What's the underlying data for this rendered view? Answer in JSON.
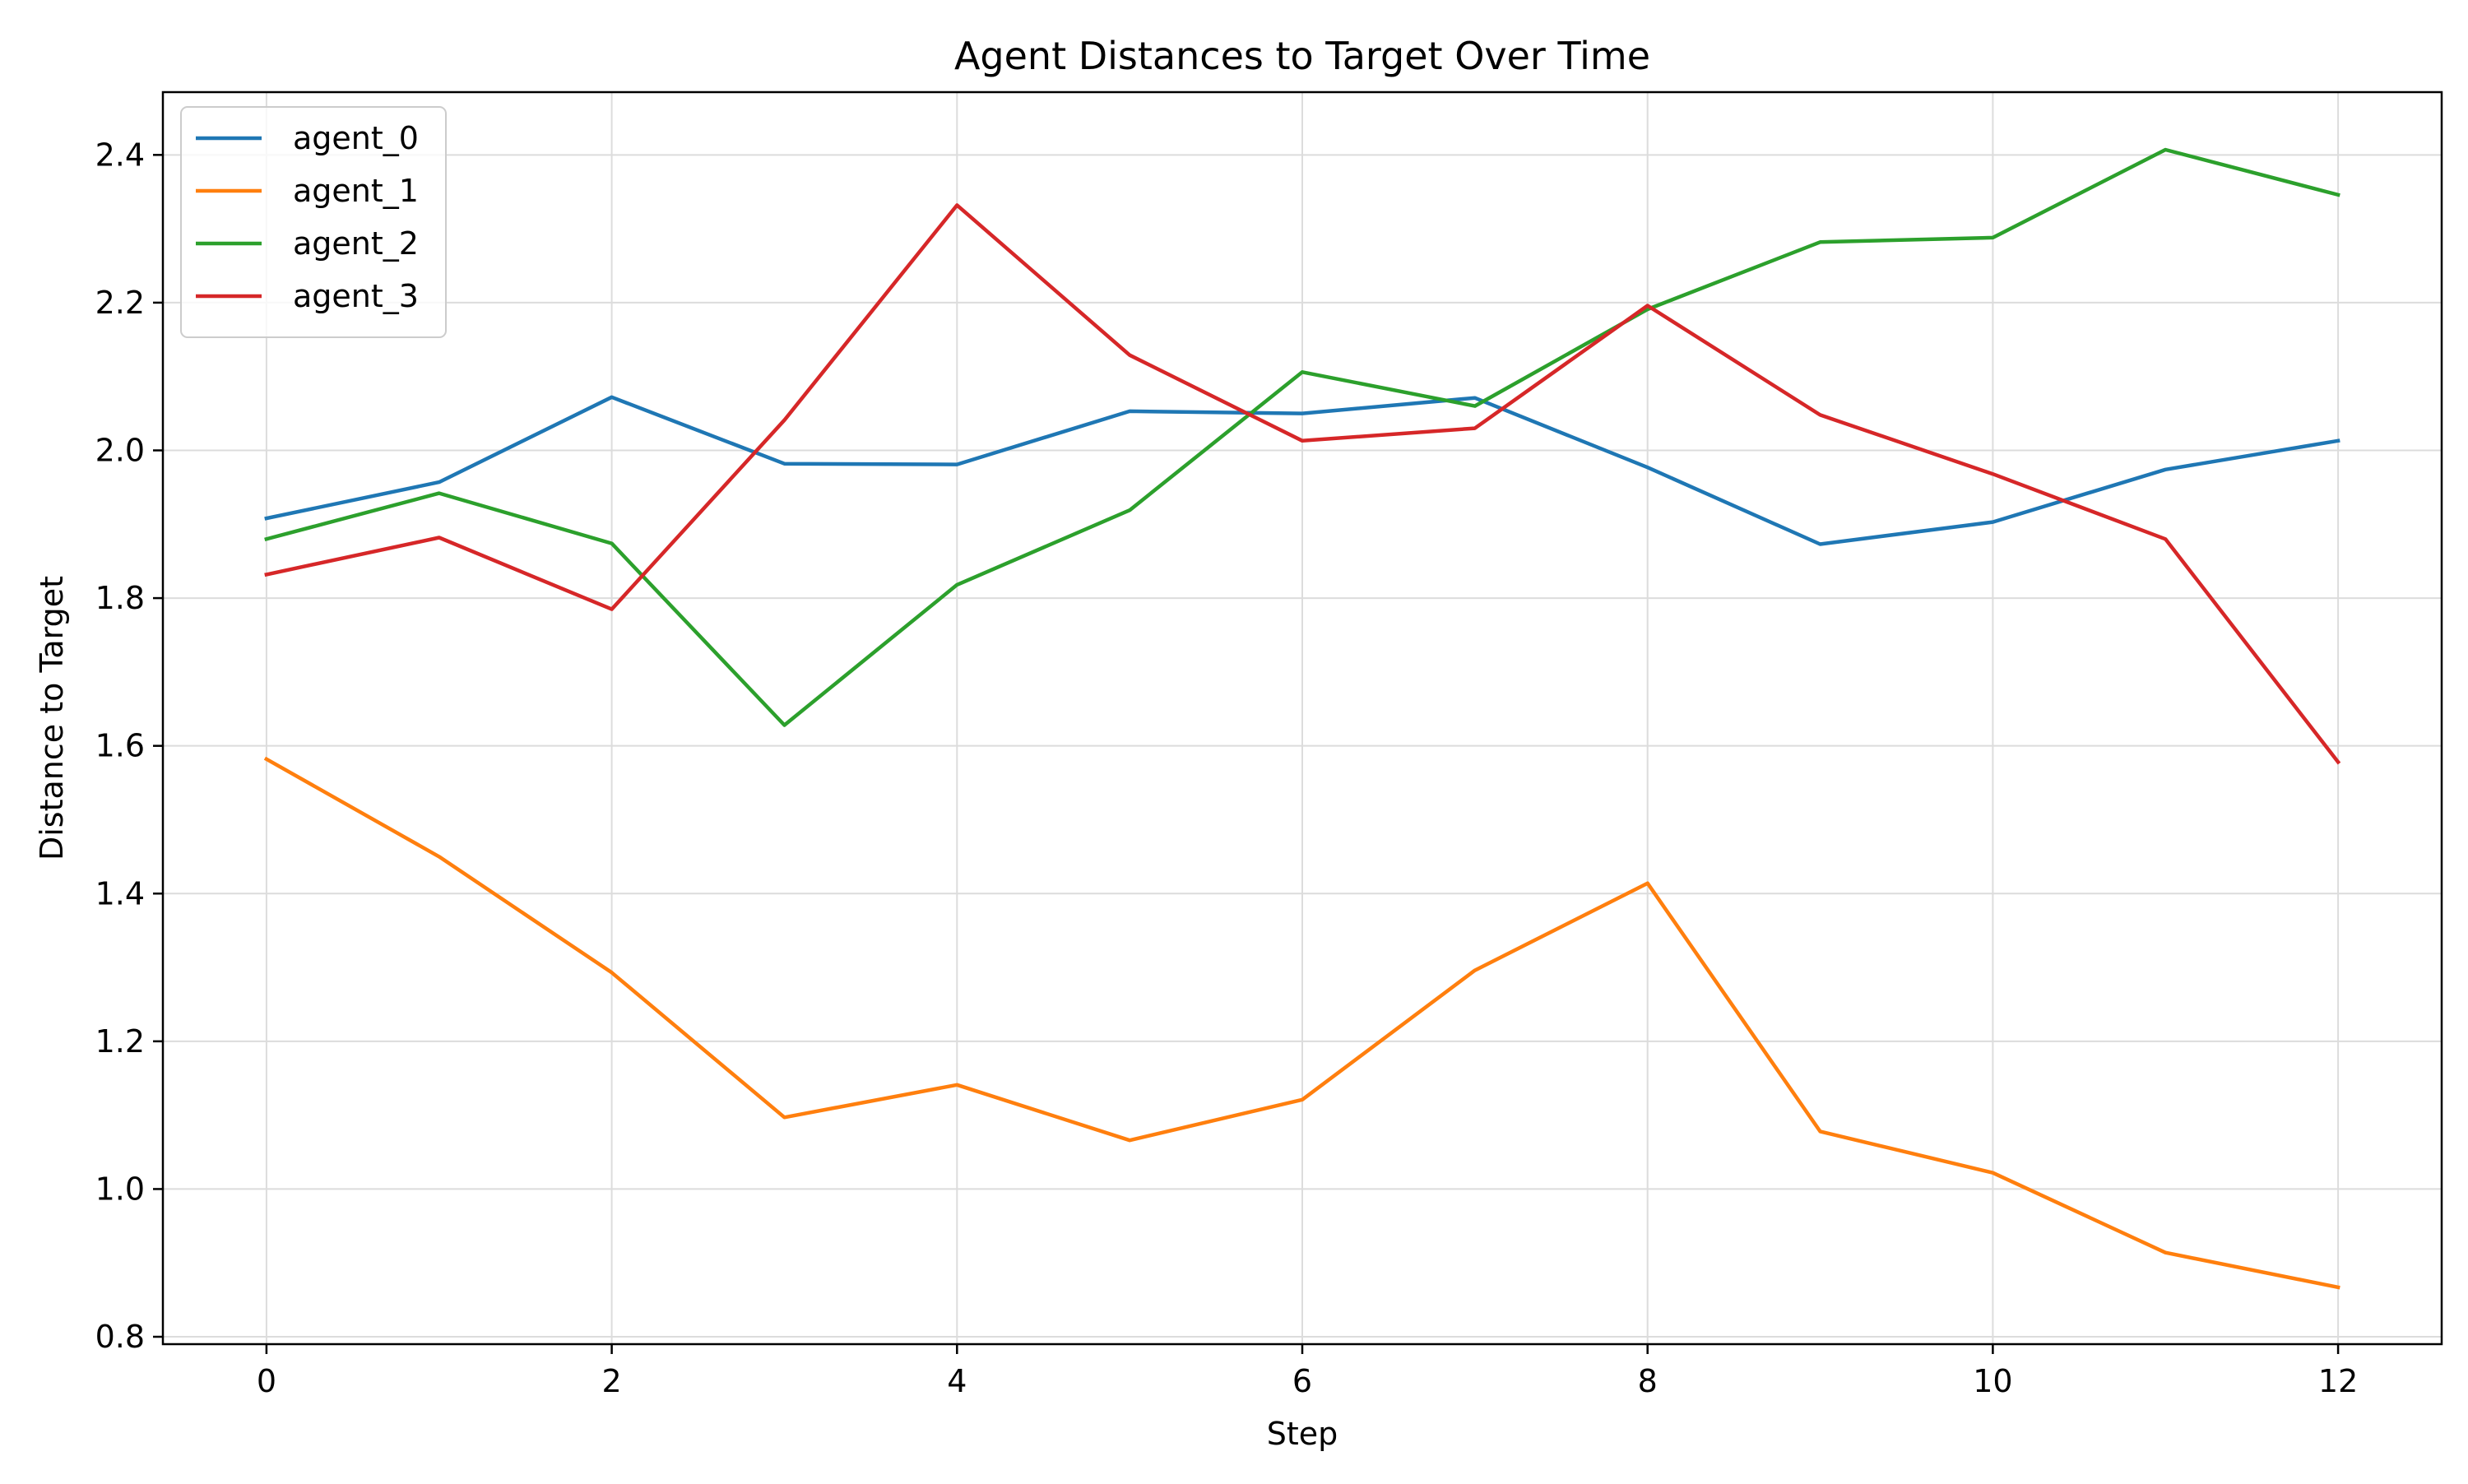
{
  "chart_data": {
    "type": "line",
    "title": "Agent Distances to Target Over Time",
    "xlabel": "Step",
    "ylabel": "Distance to Target",
    "x": [
      0,
      1,
      2,
      3,
      4,
      5,
      6,
      7,
      8,
      9,
      10,
      11,
      12
    ],
    "xlim": [
      -0.6,
      12.6
    ],
    "ylim": [
      0.79,
      2.485
    ],
    "xticks": [
      0,
      2,
      4,
      6,
      8,
      10,
      12
    ],
    "xtick_labels": [
      "0",
      "2",
      "4",
      "6",
      "8",
      "10",
      "12"
    ],
    "yticks": [
      0.8,
      1.0,
      1.2,
      1.4,
      1.6,
      1.8,
      2.0,
      2.2,
      2.4
    ],
    "ytick_labels": [
      "0.8",
      "1.0",
      "1.2",
      "1.4",
      "1.6",
      "1.8",
      "2.0",
      "2.2",
      "2.4"
    ],
    "grid": true,
    "legend_position": "top-left",
    "series": [
      {
        "name": "agent_0",
        "color": "#1f77b4",
        "values": [
          1.908,
          1.957,
          2.072,
          1.982,
          1.981,
          2.053,
          2.05,
          2.071,
          1.977,
          1.873,
          1.903,
          1.974,
          2.013
        ]
      },
      {
        "name": "agent_1",
        "color": "#ff7f0e",
        "values": [
          1.582,
          1.45,
          1.293,
          1.097,
          1.141,
          1.066,
          1.121,
          1.296,
          1.414,
          1.078,
          1.022,
          0.914,
          0.867
        ]
      },
      {
        "name": "agent_2",
        "color": "#2ca02c",
        "values": [
          1.88,
          1.942,
          1.874,
          1.628,
          1.818,
          1.919,
          2.106,
          2.06,
          2.191,
          2.282,
          2.288,
          2.407,
          2.346
        ]
      },
      {
        "name": "agent_3",
        "color": "#d62728",
        "values": [
          1.832,
          1.882,
          1.785,
          2.041,
          2.332,
          2.129,
          2.013,
          2.03,
          2.196,
          2.048,
          1.968,
          1.88,
          1.578
        ]
      }
    ]
  }
}
